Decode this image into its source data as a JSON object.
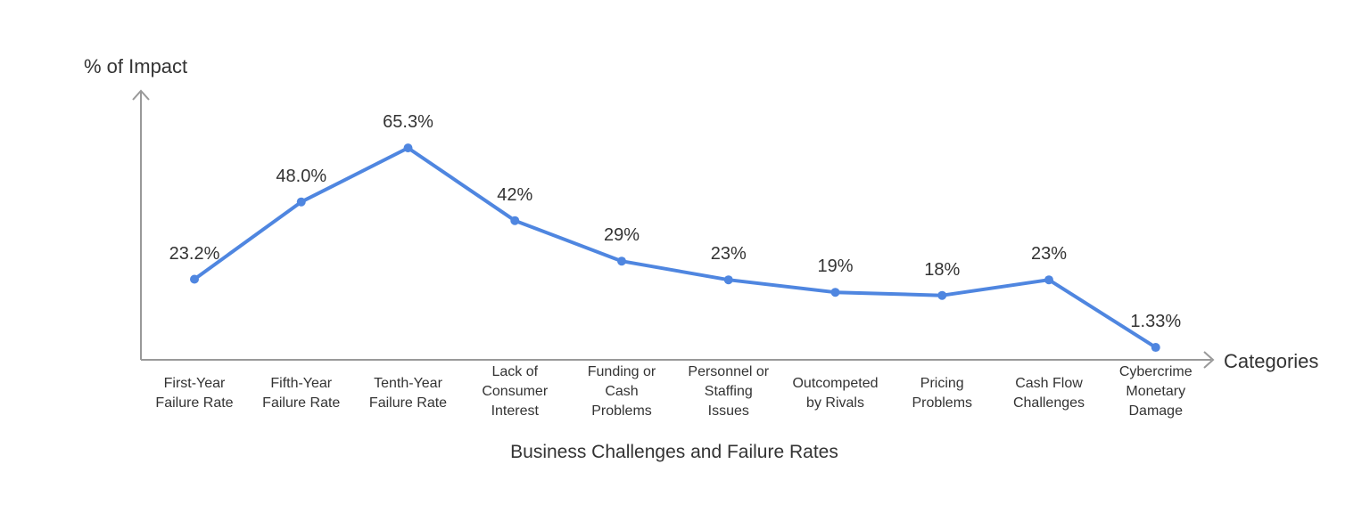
{
  "chart_data": {
    "type": "line",
    "title": "Business Challenges and Failure Rates",
    "xlabel": "Categories",
    "ylabel": "% of Impact",
    "categories": [
      [
        "First-Year",
        "Failure Rate"
      ],
      [
        "Fifth-Year",
        "Failure Rate"
      ],
      [
        "Tenth-Year",
        "Failure Rate"
      ],
      [
        "Lack of",
        "Consumer",
        "Interest"
      ],
      [
        "Funding or",
        "Cash",
        "Problems"
      ],
      [
        "Personnel or",
        "Staffing",
        "Issues"
      ],
      [
        "Outcompeted",
        "by Rivals"
      ],
      [
        "Pricing",
        "Problems"
      ],
      [
        "Cash Flow",
        "Challenges"
      ],
      [
        "Cybercrime",
        "Monetary",
        "Damage"
      ]
    ],
    "values": [
      23.2,
      48.0,
      65.3,
      42,
      29,
      23,
      19,
      18,
      23,
      1.33
    ],
    "data_labels": [
      "23.2%",
      "48.0%",
      "65.3%",
      "42%",
      "29%",
      "23%",
      "19%",
      "18%",
      "23%",
      "1.33%"
    ],
    "ylim": [
      0,
      75
    ],
    "grid": false,
    "line_color": "#4f86e0",
    "axis_color": "#999999"
  }
}
